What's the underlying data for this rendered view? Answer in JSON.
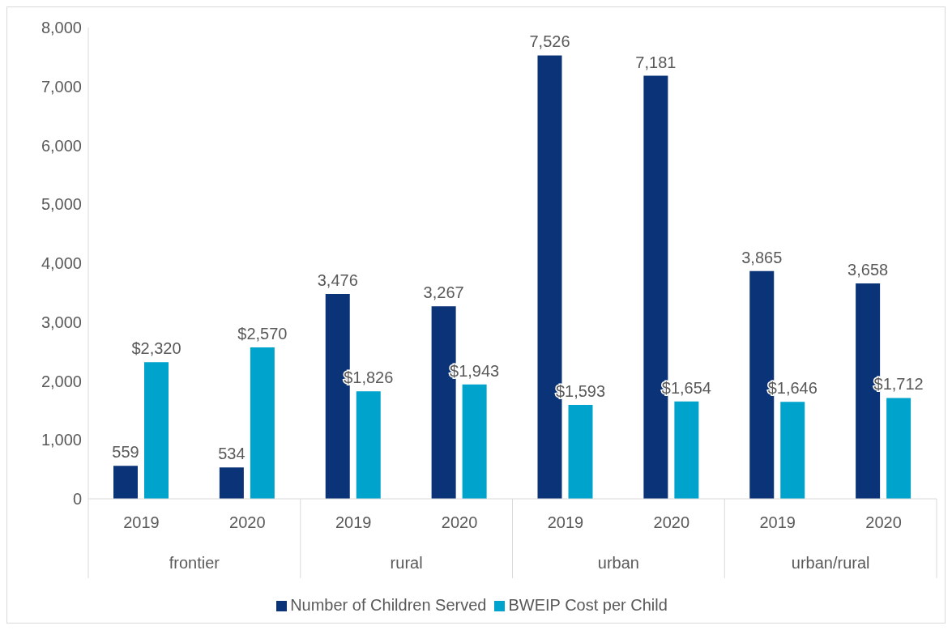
{
  "chart_data": {
    "type": "bar",
    "categories": [
      "2019",
      "2020",
      "2019",
      "2020",
      "2019",
      "2020",
      "2019",
      "2020"
    ],
    "annotations": [
      "frontier",
      "rural",
      "urban",
      "urban/rural"
    ],
    "series": [
      {
        "name": "Number of Children Served",
        "color": "#0b3378",
        "values": [
          559,
          534,
          3476,
          3267,
          7526,
          7181,
          3865,
          3658
        ],
        "value_labels": [
          "559",
          "534",
          "3,476",
          "3,267",
          "7,526",
          "7,181",
          "3,865",
          "3,658"
        ]
      },
      {
        "name": "BWEIP Cost per Child",
        "color": "#00a3cc",
        "values": [
          2320,
          2570,
          1826,
          1943,
          1593,
          1654,
          1646,
          1712
        ],
        "value_labels": [
          "$2,320",
          "$2,570",
          "$1,826",
          "$1,943",
          "$1,593",
          "$1,654",
          "$1,646",
          "$1,712"
        ]
      }
    ],
    "ylim": [
      0,
      8000
    ],
    "yticks": [
      0,
      {
        "value": 1000,
        "label": "1,000"
      },
      {
        "value": 2000,
        "label": "2,000"
      },
      {
        "value": 3000,
        "label": "3,000"
      },
      {
        "value": 4000,
        "label": "4,000"
      },
      {
        "value": 5000,
        "label": "5,000"
      },
      {
        "value": 6000,
        "label": "6,000"
      },
      {
        "value": 7000,
        "label": "7,000"
      },
      {
        "value": 8000,
        "label": "8,000"
      }
    ],
    "grid": false,
    "legend": "bottom"
  }
}
